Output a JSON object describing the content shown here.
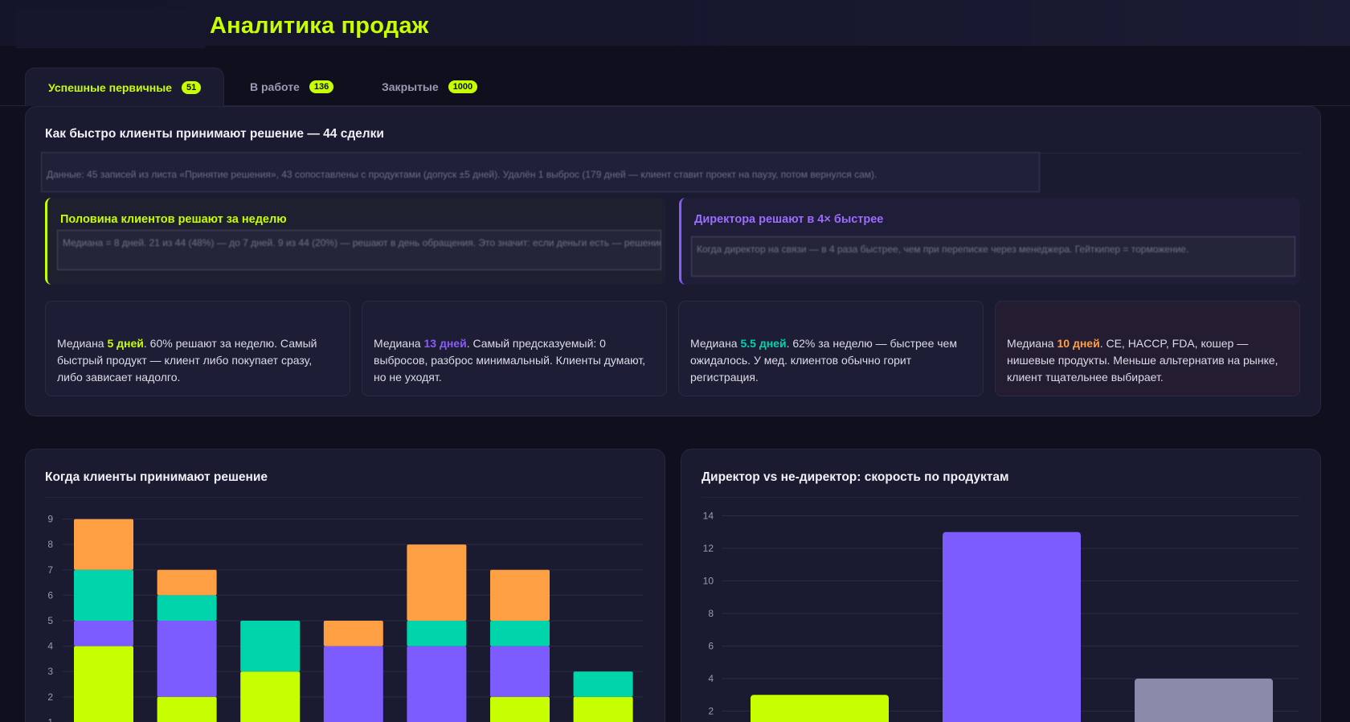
{
  "header": {
    "title": "Аналитика продаж"
  },
  "tabs": [
    {
      "label": "Успешные первичные",
      "count": "51"
    },
    {
      "label": "В работе",
      "count": "136"
    },
    {
      "label": "Закрытые",
      "count": "1000"
    }
  ],
  "decision_card": {
    "title": "Как быстро клиенты принимают решение — 44 сделки",
    "note": "Данные: 45 записей из листа «Принятие решения», 43 сопоставлены с продуктами (допуск ±5 дней). Удалён 1 выброс (179 дней — клиент ставит проект на паузу, потом вернулся сам).",
    "insights": [
      {
        "title": "Половина клиентов решают за неделю",
        "body": "Медиана = 8 дней. 21 из 44 (48%) — до 7 дней. 9 из 44 (20%) — решают в день обращения. Это значит: если деньги есть — решение быстрое."
      },
      {
        "title": "Директора решают в 4× быстрее",
        "body": "Когда директор на связи — в 4 раза быстрее, чем при переписке через менеджера. Гейткипер = торможение."
      }
    ],
    "stats": [
      {
        "prefix": "Медиана ",
        "value": "5 дней",
        "suffix": ". 60% решают за неделю. Самый быстрый продукт — клиент либо покупает сразу, либо зависает надолго.",
        "color": "#c8ff00"
      },
      {
        "prefix": "Медиана ",
        "value": "13 дней",
        "suffix": ". Самый предсказуемый: 0 выбросов, разброс минимальный. Клиенты думают, но не уходят.",
        "color": "#8b5cf6"
      },
      {
        "prefix": "Медиана ",
        "value": "5.5 дней",
        "suffix": ". 62% за неделю — быстрее чем ожидалось. У мед. клиентов обычно горит регистрация.",
        "color": "#00d4aa"
      },
      {
        "prefix": "Медиана ",
        "value": "10 дней",
        "suffix": ". CE, HACCP, FDA, кошер — нишевые продукты. Меньше альтернатив на рынке, клиент тщательнее выбирает.",
        "color": "#ff9f43"
      }
    ]
  },
  "chart_data": [
    {
      "type": "bar",
      "stacked": true,
      "title": "Когда клиенты принимают решение",
      "ylim": [
        0,
        9
      ],
      "yticks": [
        1,
        2,
        3,
        4,
        5,
        6,
        7,
        8,
        9
      ],
      "grid": true,
      "series": [
        {
          "color": "#c8ff00",
          "values": [
            4,
            2,
            3,
            0,
            0,
            2,
            2
          ]
        },
        {
          "color": "#7c5cff",
          "values": [
            1,
            3,
            0,
            4,
            4,
            2,
            0
          ]
        },
        {
          "color": "#00d4aa",
          "values": [
            2,
            1,
            2,
            0,
            1,
            1,
            1
          ]
        },
        {
          "color": "#ff9f43",
          "values": [
            2,
            1,
            0,
            1,
            3,
            2,
            0
          ]
        }
      ]
    },
    {
      "type": "bar",
      "title": "Директор vs не-директор: скорость по продуктам",
      "ylim": [
        0,
        14
      ],
      "yticks": [
        2,
        4,
        6,
        8,
        10,
        12,
        14
      ],
      "grid": true,
      "values": [
        3,
        13,
        4
      ],
      "colors": [
        "#c8ff00",
        "#7c5cff",
        "#8a8aaa"
      ]
    }
  ]
}
